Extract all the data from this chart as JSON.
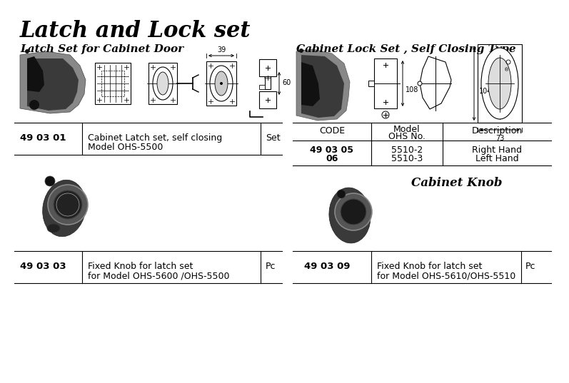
{
  "title": "Latch and Lock set",
  "left_subtitle": "Latch Set for Cabinet Door",
  "right_subtitle": "Cabinet Lock Set , Self Closing Type",
  "bg_color": "#ffffff",
  "title_fontsize": 22,
  "subtitle_fontsize": 11,
  "left_row_code": "49 03 01",
  "left_row_desc1": "Cabinet Latch set, self closing",
  "left_row_desc2": "Model OHS-5500",
  "left_row_unit": "Set",
  "bottom_left_code": "49 03 03",
  "bottom_left_desc1": "Fixed Knob for latch set",
  "bottom_left_desc2": "for Model OHS-5600 /OHS-5500",
  "bottom_left_unit": "Pc",
  "bottom_right_code": "49 03 09",
  "bottom_right_desc1": "Fixed Knob for latch set",
  "bottom_right_desc2": "for Model OHS-5610/OHS-5510",
  "bottom_right_unit": "Pc",
  "cabinet_knob_label": "Cabinet Knob",
  "dim_39": "39",
  "dim_60": "60",
  "dim_104": "104",
  "dim_108": "108",
  "dim_73": "73",
  "code_05": "49 03 05",
  "code_06": "06",
  "model_05": "5510-2",
  "model_06": "5510-3",
  "desc_05": "Right Hand",
  "desc_06": "Left Hand",
  "tbl_code": "CODE",
  "tbl_model": "Model\nOHS No.",
  "tbl_desc": "Description"
}
